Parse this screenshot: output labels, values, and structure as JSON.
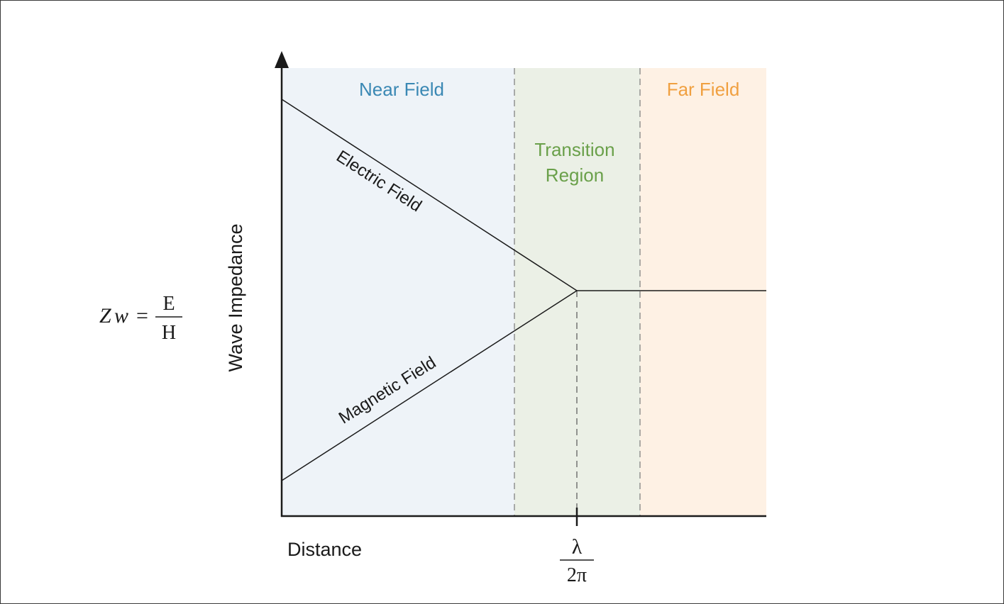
{
  "regions": {
    "near": {
      "label": "Near Field",
      "color": "#3a88b4",
      "fill": "#eef3f8"
    },
    "transition": {
      "line1": "Transition",
      "line2": "Region",
      "color": "#6aa04a",
      "fill": "#ebf0e6"
    },
    "far": {
      "label": "Far Field",
      "color": "#f0a040",
      "fill": "#fef1e4"
    }
  },
  "curves": {
    "electric": "Electric Field",
    "magnetic": "Magnetic Field"
  },
  "axes": {
    "y_label": "Wave Impedance",
    "x_label": "Distance"
  },
  "formula": {
    "lhs_var_Z": "Z",
    "lhs_var_w": "w",
    "equals": "=",
    "numerator": "E",
    "denominator": "H"
  },
  "boundary_marker": {
    "numerator": "λ",
    "denominator": "2π"
  }
}
